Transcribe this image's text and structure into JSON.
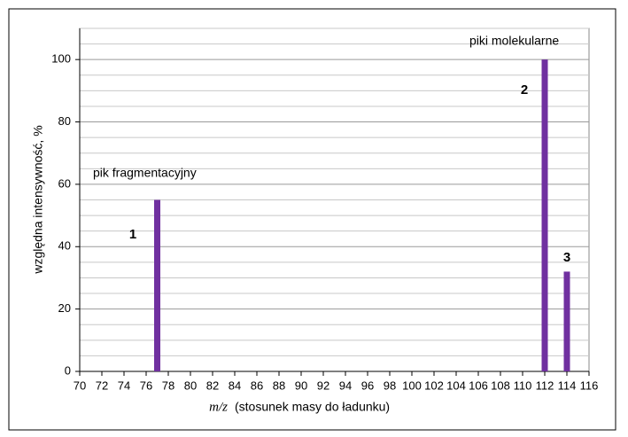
{
  "chart_data": {
    "type": "bar",
    "ylabel": "względna intensywność, %",
    "xlabel_var": "m/z",
    "xlabel": "(stosunek masy do ładunku)",
    "x": [
      77,
      112,
      114
    ],
    "values": [
      55,
      100,
      32
    ],
    "color": "#7030a0",
    "xlim": [
      70,
      116
    ],
    "xticks": [
      70,
      72,
      74,
      76,
      78,
      80,
      82,
      84,
      86,
      88,
      90,
      92,
      94,
      96,
      98,
      100,
      102,
      104,
      106,
      108,
      110,
      112,
      114,
      116
    ],
    "ylim": [
      0,
      110
    ],
    "yticks": [
      0,
      20,
      40,
      60,
      80,
      100
    ],
    "yminor": [
      5,
      10,
      15,
      25,
      30,
      35,
      45,
      50,
      55,
      65,
      70,
      75,
      85,
      90,
      95,
      105,
      110
    ],
    "grid": true,
    "annotations": [
      "pik fragmentacyjny",
      "1",
      "piki molekularne",
      "2",
      "3"
    ]
  }
}
